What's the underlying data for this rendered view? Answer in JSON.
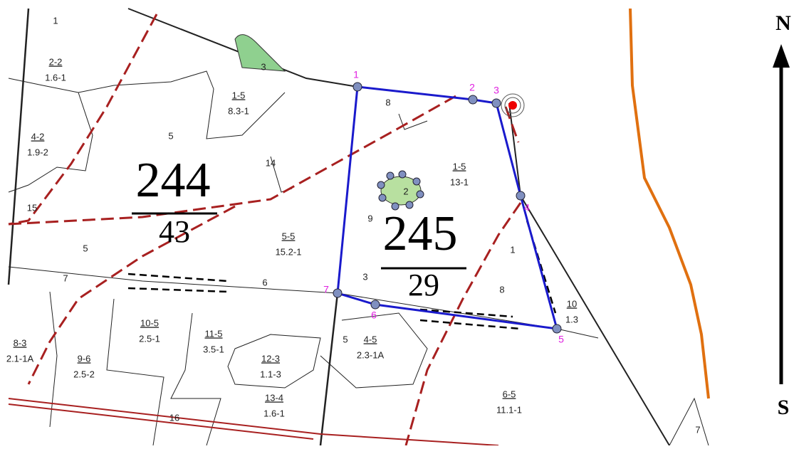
{
  "compass": {
    "north": "N",
    "south": "S"
  },
  "quarters": [
    {
      "number": "244",
      "subnumber": "43"
    },
    {
      "number": "245",
      "subnumber": "29"
    }
  ],
  "vertices": [
    "1",
    "2",
    "3",
    "4",
    "5",
    "6",
    "7"
  ],
  "stands": [
    {
      "id": "2-2",
      "code": "1.6-1"
    },
    {
      "id": "1-5",
      "code": "8.3-1"
    },
    {
      "id": "4-2",
      "code": "1.9-2"
    },
    {
      "id": "1-5",
      "code": "13-1"
    },
    {
      "id": "5-5",
      "code": "15.2-1"
    },
    {
      "id": "10-5",
      "code": "2.5-1"
    },
    {
      "id": "11-5",
      "code": "3.5-1"
    },
    {
      "id": "12-3",
      "code": "1.1-3"
    },
    {
      "id": "9-6",
      "code": "2.5-2"
    },
    {
      "id": "8-3",
      "code": "2.1-1A"
    },
    {
      "id": "4-5",
      "code": "2.3-1A"
    },
    {
      "id": "13-4",
      "code": "1.6-1"
    },
    {
      "id": "6-5",
      "code": "11.1-1"
    },
    {
      "id": "10",
      "code": "1.3"
    }
  ],
  "labels": [
    "1",
    "3",
    "5",
    "14",
    "15",
    "5",
    "7",
    "6",
    "8",
    "9",
    "3",
    "1",
    "8",
    "5",
    "2",
    "16",
    "7"
  ]
}
